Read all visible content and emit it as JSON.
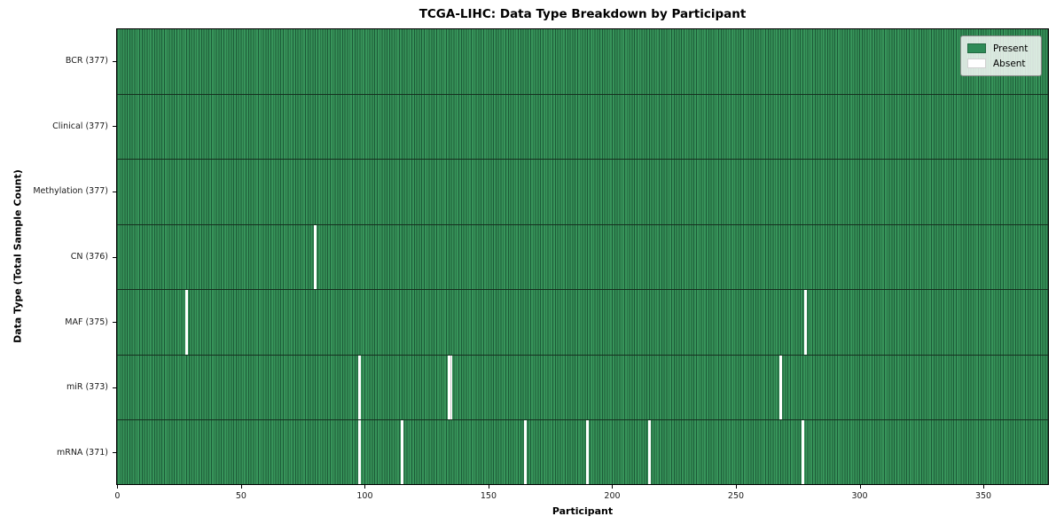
{
  "figure": {
    "title": "TCGA-LIHC: Data Type Breakdown by Participant",
    "x_axis_label": "Participant",
    "y_axis_label": "Data Type (Total Sample Count)"
  },
  "legend": {
    "present_label": "Present",
    "absent_label": "Absent"
  },
  "colors": {
    "present": "#2e8b57",
    "present_stripe_fill": "#37945a",
    "present_stripe_line": "#1c5a37",
    "row_divider": "#16301f",
    "absent": "#ffffff",
    "absent_pair_divider": "#c8c8c8",
    "axis_frame": "#000000",
    "legend_border": "#8a8a8a"
  },
  "chart_data": {
    "type": "heatmap",
    "title": "TCGA-LIHC: Data Type Breakdown by Participant",
    "xlabel": "Participant",
    "ylabel": "Data Type (Total Sample Count)",
    "n_participants": 377,
    "x_range": [
      0,
      377
    ],
    "x_ticks": [
      0,
      50,
      100,
      150,
      200,
      250,
      300,
      350
    ],
    "legend_entries": [
      "Present",
      "Absent"
    ],
    "rows": [
      {
        "label": "BCR (377)",
        "data_type": "BCR",
        "present_count": 377,
        "absent_participants": []
      },
      {
        "label": "Clinical (377)",
        "data_type": "Clinical",
        "present_count": 377,
        "absent_participants": []
      },
      {
        "label": "Methylation (377)",
        "data_type": "Methylation",
        "present_count": 377,
        "absent_participants": []
      },
      {
        "label": "CN (376)",
        "data_type": "CN",
        "present_count": 376,
        "absent_participants": [
          80
        ]
      },
      {
        "label": "MAF (375)",
        "data_type": "MAF",
        "present_count": 375,
        "absent_participants": [
          28,
          278
        ]
      },
      {
        "label": "miR (373)",
        "data_type": "miR",
        "present_count": 373,
        "absent_participants": [
          98,
          134,
          135,
          268
        ]
      },
      {
        "label": "mRNA (371)",
        "data_type": "mRNA",
        "present_count": 371,
        "absent_participants": [
          98,
          115,
          165,
          190,
          215,
          277
        ]
      }
    ]
  }
}
